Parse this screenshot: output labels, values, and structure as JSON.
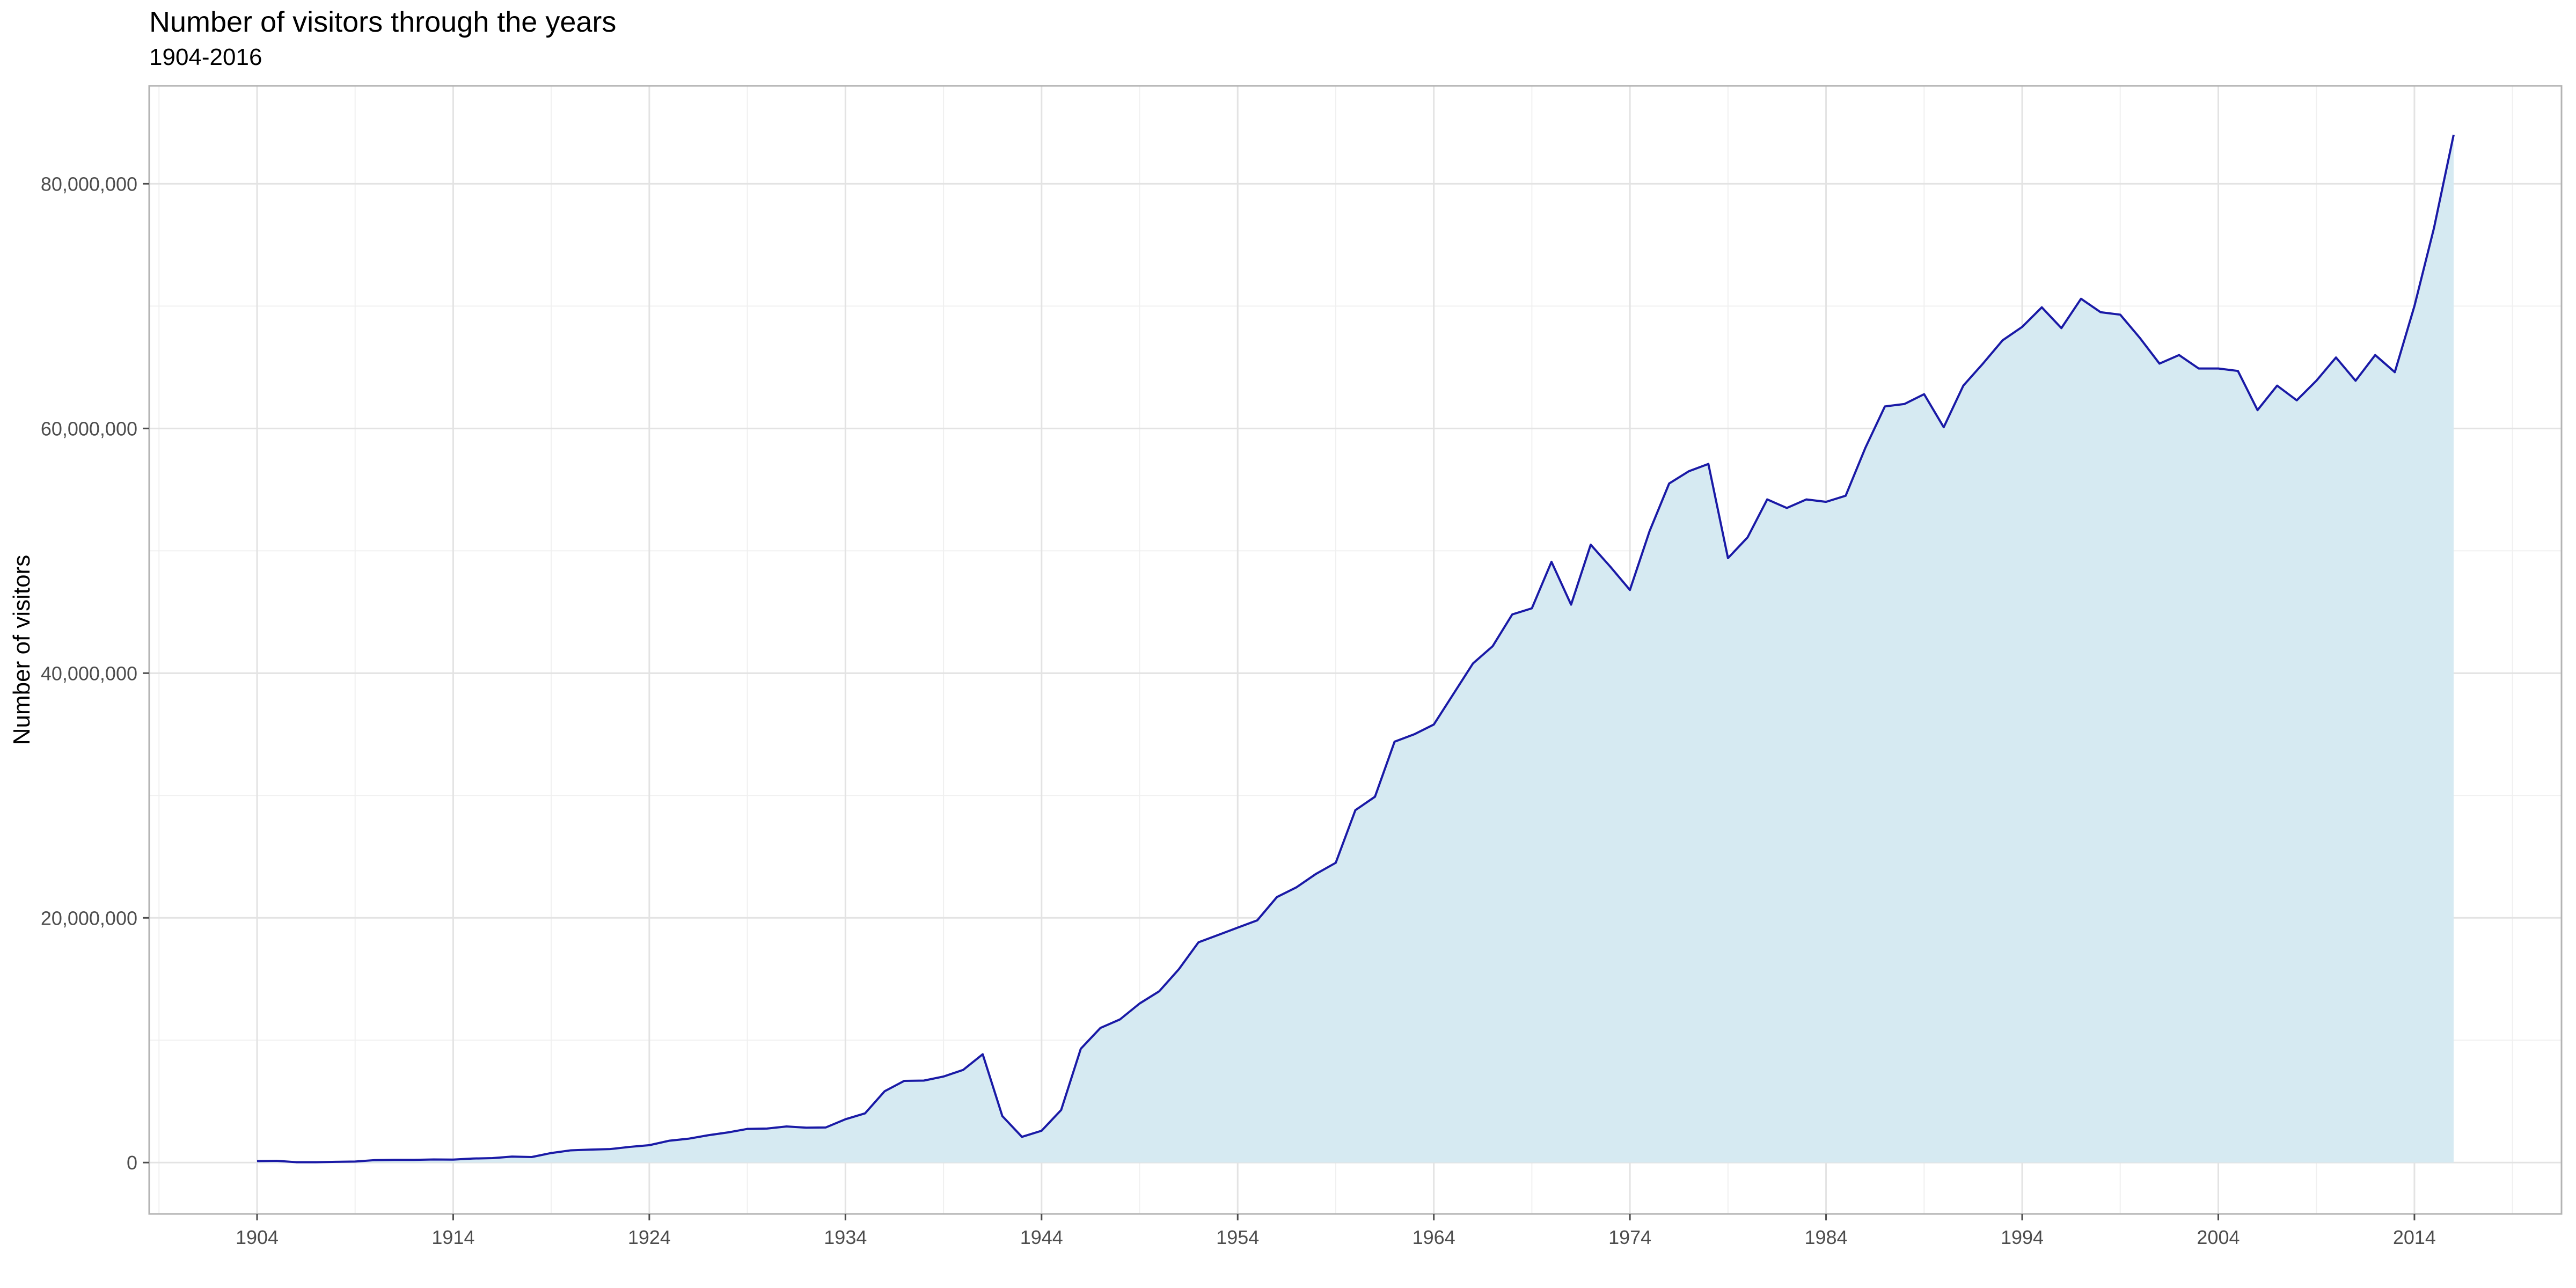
{
  "chart_data": {
    "type": "area",
    "title": "Number of visitors through the years",
    "subtitle": "1904-2016",
    "xlabel": "",
    "ylabel": "Number of visitors",
    "xlim": [
      1898.5,
      2021.5
    ],
    "ylim": [
      -4200000,
      88000000
    ],
    "x_ticks": [
      1904,
      1914,
      1924,
      1934,
      1944,
      1954,
      1964,
      1974,
      1984,
      1994,
      2004,
      2014
    ],
    "y_ticks": [
      0,
      20000000,
      40000000,
      60000000,
      80000000
    ],
    "y_tick_labels": [
      "0",
      "20,000,000",
      "40,000,000",
      "60,000,000",
      "80,000,000"
    ],
    "grid": true,
    "line_color": "#1a1aa6",
    "fill_color": "#d6eaf2",
    "x": [
      1904,
      1905,
      1906,
      1907,
      1908,
      1909,
      1910,
      1911,
      1912,
      1913,
      1914,
      1915,
      1916,
      1917,
      1918,
      1919,
      1920,
      1921,
      1922,
      1923,
      1924,
      1925,
      1926,
      1927,
      1928,
      1929,
      1930,
      1931,
      1932,
      1933,
      1934,
      1935,
      1936,
      1937,
      1938,
      1939,
      1940,
      1941,
      1942,
      1943,
      1944,
      1945,
      1946,
      1947,
      1948,
      1949,
      1950,
      1951,
      1952,
      1953,
      1954,
      1955,
      1956,
      1957,
      1958,
      1959,
      1960,
      1961,
      1962,
      1963,
      1964,
      1965,
      1966,
      1967,
      1968,
      1969,
      1970,
      1971,
      1972,
      1973,
      1974,
      1975,
      1976,
      1977,
      1978,
      1979,
      1980,
      1981,
      1982,
      1983,
      1984,
      1985,
      1986,
      1987,
      1988,
      1989,
      1990,
      1991,
      1992,
      1993,
      1994,
      1995,
      1996,
      1997,
      1998,
      1999,
      2000,
      2001,
      2002,
      2003,
      2004,
      2005,
      2006,
      2007,
      2008,
      2009,
      2010,
      2011,
      2012,
      2013,
      2014,
      2015,
      2016
    ],
    "y": [
      120000,
      140000,
      30000,
      30000,
      60000,
      80000,
      200000,
      220000,
      220000,
      250000,
      240000,
      330000,
      360000,
      490000,
      450000,
      780000,
      1000000,
      1060000,
      1100000,
      1280000,
      1420000,
      1780000,
      1950000,
      2230000,
      2460000,
      2750000,
      2780000,
      2950000,
      2850000,
      2870000,
      3540000,
      4020000,
      5830000,
      6680000,
      6700000,
      7030000,
      7570000,
      8850000,
      3800000,
      2100000,
      2600000,
      4300000,
      9300000,
      11000000,
      11700000,
      13000000,
      14000000,
      15800000,
      18000000,
      18600000,
      19200000,
      19800000,
      21700000,
      22500000,
      23600000,
      24500000,
      28800000,
      29900000,
      34400000,
      35000000,
      35800000,
      38300000,
      40800000,
      42200000,
      44800000,
      45300000,
      49100000,
      45600000,
      50500000,
      48700000,
      46800000,
      51600000,
      55500000,
      56500000,
      57100000,
      49400000,
      51100000,
      54200000,
      53500000,
      54200000,
      54000000,
      54500000,
      58400000,
      61800000,
      62000000,
      62800000,
      60100000,
      63500000,
      65300000,
      67200000,
      68300000,
      69900000,
      68200000,
      70600000,
      69500000,
      69300000,
      67400000,
      65300000,
      66000000,
      64900000,
      64900000,
      64700000,
      61500000,
      63500000,
      62300000,
      63900000,
      65800000,
      63900000,
      66000000,
      64600000,
      70000000,
      76400000,
      84000000
    ]
  }
}
